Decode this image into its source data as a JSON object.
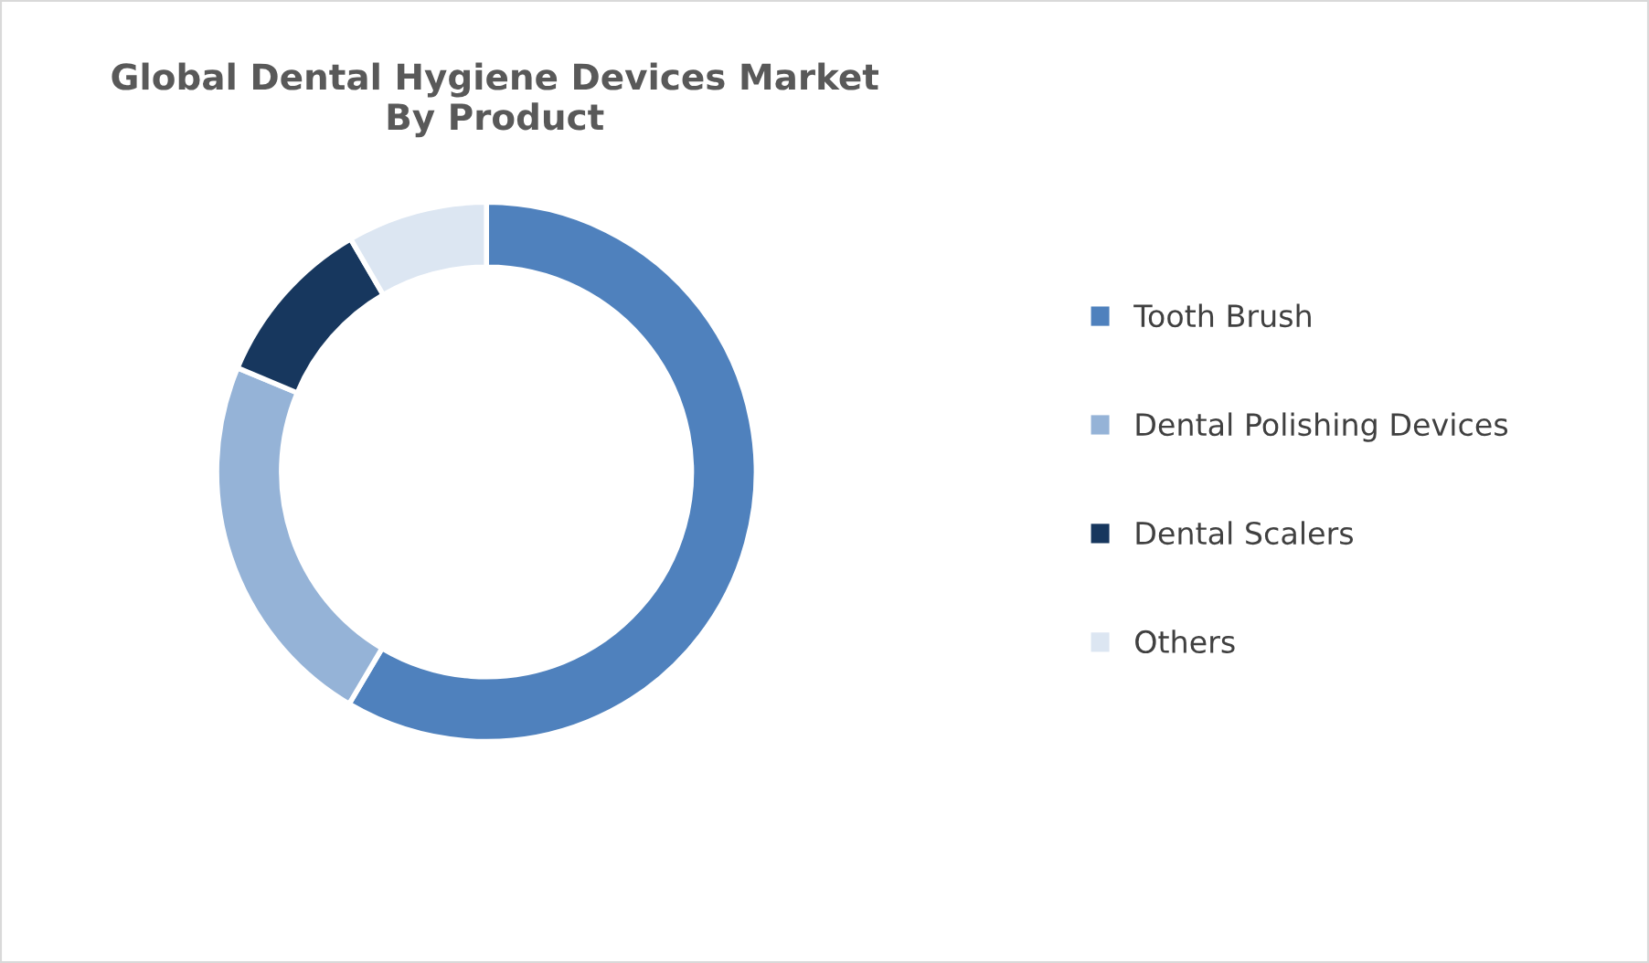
{
  "chart_data": {
    "type": "donut",
    "title": "Global Dental Hygiene Devices Market\nBy Product",
    "categories": [
      "Tooth Brush",
      "Dental Polishing Devices",
      "Dental Scalers",
      "Others"
    ],
    "values": [
      58.5,
      22.8,
      10.3,
      8.4
    ],
    "colors": [
      "#4f81bd",
      "#95b3d7",
      "#17375e",
      "#dce6f2"
    ],
    "legend": "right"
  }
}
